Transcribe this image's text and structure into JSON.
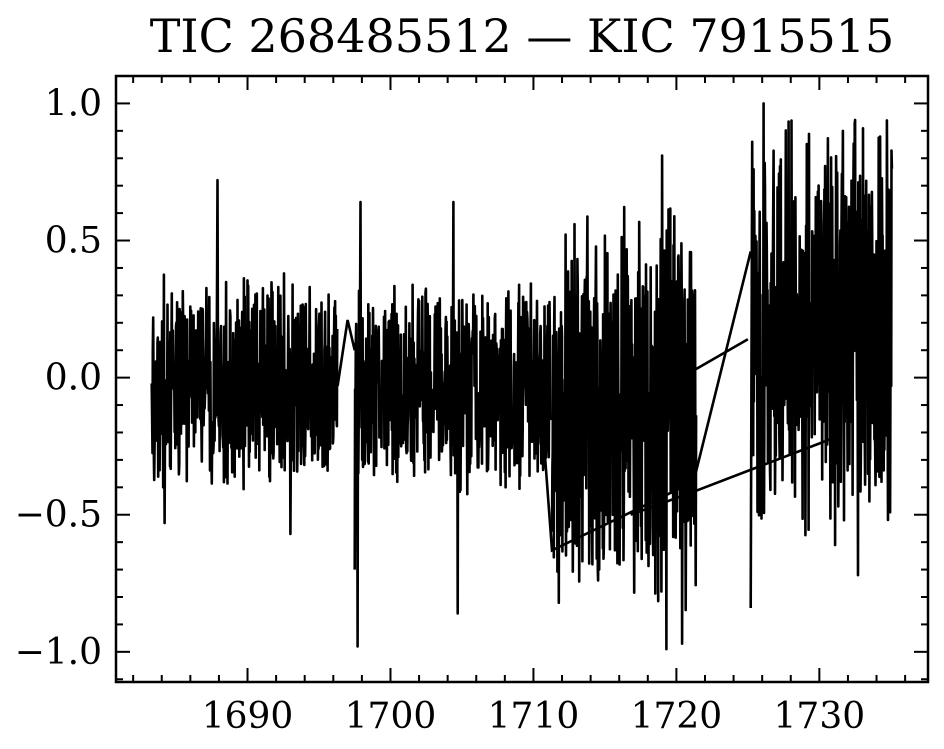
{
  "chart_data": {
    "type": "line",
    "title": "TIC 268485512 — KIC 7915515",
    "xlabel": "",
    "ylabel": "",
    "xlim": [
      1680.8,
      1737.6
    ],
    "ylim": [
      -1.11,
      1.1
    ],
    "x_ticks": [
      1690,
      1700,
      1710,
      1720,
      1730
    ],
    "x_tick_labels": [
      "1690",
      "1700",
      "1710",
      "1720",
      "1730"
    ],
    "y_ticks": [
      1.0,
      0.5,
      0.0,
      -0.5,
      -1.0
    ],
    "y_tick_labels": [
      "1.0",
      "0.5",
      "0.0",
      "−0.5",
      "−1.0"
    ],
    "grid": false,
    "line_color": "#000000",
    "series": [
      {
        "segments": [
          {
            "x_start": 1683.3,
            "x_end": 1696.3,
            "center": -0.02,
            "amplitude": 0.42,
            "spikes": [
              [
                1687.9,
                0.72
              ],
              [
                1684.2,
                -0.53
              ],
              [
                1693.0,
                -0.57
              ]
            ]
          },
          {
            "x_start": 1697.5,
            "x_end": 1711.2,
            "center": -0.03,
            "amplitude": 0.4,
            "spikes": [
              [
                1697.7,
                -0.98
              ],
              [
                1697.9,
                0.64
              ],
              [
                1704.4,
                0.64
              ],
              [
                1704.7,
                -0.86
              ],
              [
                1697.5,
                -0.7
              ]
            ]
          },
          {
            "x_start": 1711.3,
            "x_end": 1721.4,
            "center": -0.12,
            "amplitude": 0.78,
            "spikes": [
              [
                1719.3,
                -0.99
              ],
              [
                1719.0,
                0.81
              ],
              [
                1720.4,
                -0.97
              ]
            ]
          },
          {
            "x_start": 1725.3,
            "x_end": 1735.1,
            "center": 0.18,
            "amplitude": 0.82,
            "spikes": [
              [
                1726.1,
                1.0
              ],
              [
                1725.2,
                -0.84
              ],
              [
                1732.7,
                -0.72
              ],
              [
                1732.5,
                0.94
              ]
            ]
          }
        ],
        "bridges": [
          [
            [
              1696.3,
              -0.03
            ],
            [
              1697.0,
              0.21
            ],
            [
              1697.5,
              0.1
            ]
          ],
          [
            [
              1710.2,
              0.14
            ],
            [
              1711.3,
              -0.63
            ],
            [
              1721.2,
              -0.38
            ],
            [
              1725.2,
              0.46
            ]
          ],
          [
            [
              1716.8,
              -0.5
            ],
            [
              1721.0,
              -0.42
            ],
            [
              1731.0,
              -0.22
            ]
          ],
          [
            [
              1721.0,
              0.02
            ],
            [
              1725.0,
              0.14
            ]
          ]
        ]
      }
    ]
  }
}
